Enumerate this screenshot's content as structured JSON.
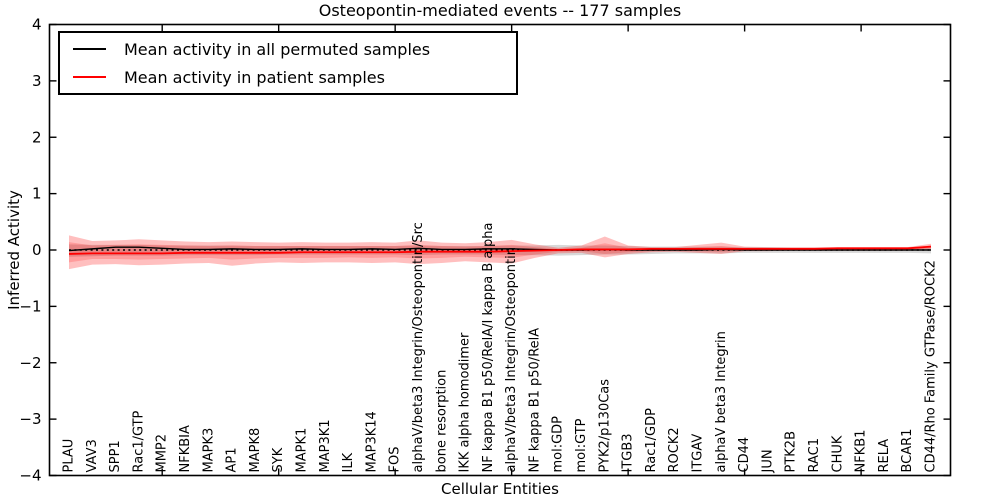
{
  "chart_data": {
    "type": "line",
    "title": "Osteopontin-mediated events -- 177 samples",
    "xlabel": "Cellular Entities",
    "ylabel": "Inferred Activity",
    "ylim": [
      -4,
      4
    ],
    "yticks": [
      -4,
      -3,
      -2,
      -1,
      0,
      1,
      2,
      3,
      4
    ],
    "xtick_indices": [
      4,
      9,
      14,
      19,
      24,
      29,
      34
    ],
    "grid": false,
    "legend_position": "upper left",
    "categories": [
      "PLAU",
      "VAV3",
      "SPP1",
      "Rac1/GTP",
      "MMP2",
      "NFKBIA",
      "MAPK3",
      "AP1",
      "MAPK8",
      "SYK",
      "MAPK1",
      "MAP3K1",
      "ILK",
      "MAP3K14",
      "FOS",
      "alphaV/beta3 Integrin/Osteopontin/Src",
      "bone resorption",
      "IKK alpha homodimer",
      "NF kappa B1 p50/RelA/I kappa B alpha",
      "alphaV/beta3 Integrin/Osteopontin",
      "NF kappa B1 p50/RelA",
      "mol:GDP",
      "mol:GTP",
      "PYK2/p130Cas",
      "ITGB3",
      "Rac1/GDP",
      "ROCK2",
      "ITGAV",
      "alphaV beta3 Integrin",
      "CD44",
      "JUN",
      "PTK2B",
      "RAC1",
      "CHUK",
      "NFKB1",
      "RELA",
      "BCAR1",
      "CD44/Rho Family GTPase/ROCK2"
    ],
    "series": [
      {
        "name": "Mean activity in all permuted samples",
        "color": "#000000",
        "values": [
          -0.01,
          0.02,
          0.05,
          0.05,
          0.03,
          0.01,
          0.01,
          0.02,
          0.01,
          0.01,
          0.02,
          0.01,
          0.01,
          0.02,
          0.01,
          0.03,
          0.01,
          0.01,
          0.02,
          0.02,
          0.01,
          0.0,
          0.0,
          0.01,
          0.0,
          0.0,
          0.0,
          0.0,
          0.01,
          0.0,
          0.0,
          0.0,
          0.0,
          0.0,
          0.0,
          0.0,
          0.0,
          0.0
        ]
      },
      {
        "name": "Mean activity in patient samples",
        "color": "#ff0000",
        "values": [
          -0.07,
          -0.06,
          -0.06,
          -0.06,
          -0.06,
          -0.05,
          -0.05,
          -0.05,
          -0.05,
          -0.05,
          -0.04,
          -0.04,
          -0.04,
          -0.04,
          -0.04,
          -0.03,
          -0.03,
          -0.03,
          -0.03,
          -0.02,
          -0.01,
          0.0,
          0.01,
          0.01,
          0.01,
          0.02,
          0.02,
          0.02,
          0.02,
          0.02,
          0.02,
          0.02,
          0.02,
          0.03,
          0.03,
          0.03,
          0.03,
          0.06
        ]
      }
    ],
    "bands": [
      {
        "name": "permuted-range",
        "color": "#999999",
        "opacity": 0.38,
        "hi": [
          0.1,
          0.09,
          0.09,
          0.09,
          0.08,
          0.08,
          0.08,
          0.08,
          0.07,
          0.07,
          0.07,
          0.07,
          0.07,
          0.07,
          0.07,
          0.08,
          0.07,
          0.07,
          0.07,
          0.08,
          0.08,
          0.09,
          0.08,
          0.08,
          0.07,
          0.06,
          0.06,
          0.06,
          0.06,
          0.05,
          0.05,
          0.04,
          0.04,
          0.04,
          0.04,
          0.04,
          0.04,
          0.04
        ],
        "lo": [
          -0.12,
          -0.11,
          -0.1,
          -0.1,
          -0.1,
          -0.09,
          -0.09,
          -0.09,
          -0.09,
          -0.08,
          -0.08,
          -0.08,
          -0.08,
          -0.08,
          -0.08,
          -0.09,
          -0.08,
          -0.08,
          -0.08,
          -0.09,
          -0.09,
          -0.1,
          -0.09,
          -0.08,
          -0.08,
          -0.07,
          -0.06,
          -0.06,
          -0.06,
          -0.05,
          -0.05,
          -0.05,
          -0.05,
          -0.05,
          -0.05,
          -0.05,
          -0.05,
          -0.06
        ]
      },
      {
        "name": "patient-range-outer",
        "color": "#ff0000",
        "opacity": 0.25,
        "hi": [
          0.26,
          0.16,
          0.17,
          0.19,
          0.17,
          0.15,
          0.14,
          0.15,
          0.14,
          0.13,
          0.14,
          0.13,
          0.13,
          0.14,
          0.13,
          0.17,
          0.13,
          0.12,
          0.14,
          0.18,
          0.1,
          0.04,
          0.08,
          0.24,
          0.08,
          0.05,
          0.05,
          0.09,
          0.13,
          0.06,
          0.05,
          0.05,
          0.05,
          0.05,
          0.05,
          0.05,
          0.05,
          0.11
        ],
        "lo": [
          -0.34,
          -0.26,
          -0.25,
          -0.27,
          -0.26,
          -0.24,
          -0.23,
          -0.28,
          -0.24,
          -0.22,
          -0.23,
          -0.22,
          -0.22,
          -0.23,
          -0.22,
          -0.25,
          -0.23,
          -0.2,
          -0.22,
          -0.24,
          -0.14,
          -0.06,
          -0.05,
          -0.13,
          -0.07,
          -0.04,
          -0.03,
          -0.05,
          -0.07,
          -0.02,
          -0.02,
          -0.01,
          -0.01,
          -0.01,
          -0.01,
          -0.01,
          -0.01,
          0.01
        ]
      },
      {
        "name": "patient-range-inner",
        "color": "#ff0000",
        "opacity": 0.18,
        "hi": [
          0.14,
          0.08,
          0.09,
          0.1,
          0.09,
          0.08,
          0.07,
          0.08,
          0.07,
          0.07,
          0.07,
          0.07,
          0.07,
          0.07,
          0.07,
          0.09,
          0.07,
          0.06,
          0.07,
          0.09,
          0.05,
          0.02,
          0.04,
          0.12,
          0.04,
          0.03,
          0.03,
          0.05,
          0.07,
          0.03,
          0.03,
          0.03,
          0.03,
          0.03,
          0.03,
          0.03,
          0.03,
          0.08
        ],
        "lo": [
          -0.22,
          -0.16,
          -0.16,
          -0.17,
          -0.16,
          -0.15,
          -0.14,
          -0.17,
          -0.15,
          -0.14,
          -0.14,
          -0.14,
          -0.13,
          -0.14,
          -0.13,
          -0.15,
          -0.14,
          -0.12,
          -0.13,
          -0.14,
          -0.08,
          -0.03,
          -0.02,
          -0.07,
          -0.04,
          -0.02,
          -0.01,
          -0.02,
          -0.03,
          -0.01,
          -0.01,
          0.0,
          0.0,
          0.0,
          0.0,
          0.0,
          0.0,
          0.03
        ]
      }
    ],
    "zero_line": {
      "y": 0,
      "style": "dotted",
      "color": "#000000"
    }
  }
}
